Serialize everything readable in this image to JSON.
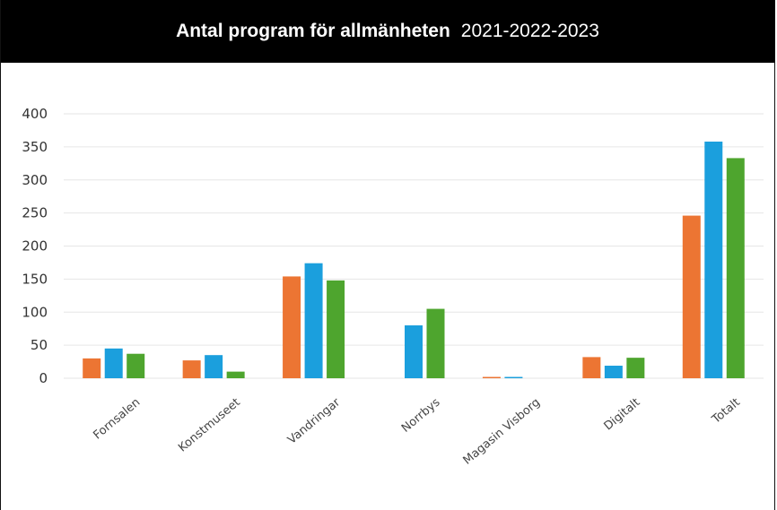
{
  "header": {
    "title": "Antal program för allmänheten",
    "years": "2021-2022-2023"
  },
  "colors": {
    "s2021": "#EC7533",
    "s2022": "#1B9FDD",
    "s2023": "#4EA52E",
    "grid": "#e6e6e6"
  },
  "chart_data": {
    "type": "bar",
    "title": "Antal program för allmänheten 2021-2022-2023",
    "xlabel": "",
    "ylabel": "",
    "ylim": [
      0,
      400
    ],
    "yticks": [
      0,
      50,
      100,
      150,
      200,
      250,
      300,
      350,
      400
    ],
    "grid": true,
    "legend": "none",
    "categories": [
      "Fornsalen",
      "Konstmuseet",
      "Vandringar",
      "Norrbys",
      "Magasin Visborg",
      "Digitalt",
      "Totalt"
    ],
    "series": [
      {
        "values": [
          30,
          27,
          154,
          0,
          2,
          32,
          246
        ]
      },
      {
        "values": [
          45,
          35,
          174,
          80,
          2,
          19,
          358
        ]
      },
      {
        "values": [
          37,
          10,
          148,
          105,
          0,
          31,
          333
        ]
      }
    ]
  }
}
